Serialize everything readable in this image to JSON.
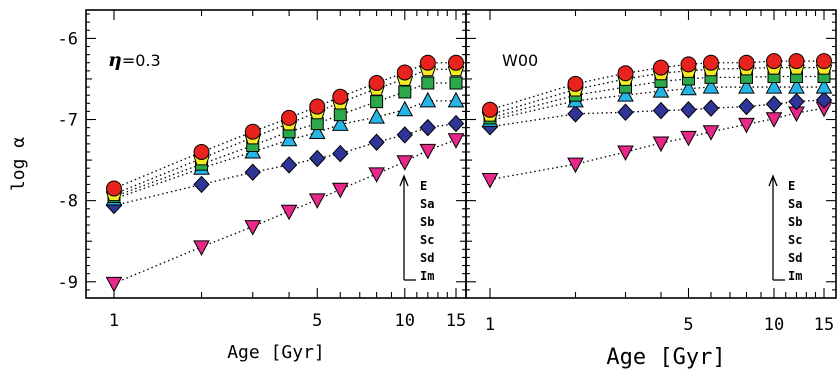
{
  "chart_data": {
    "type": "scatter",
    "y_axis_title": "log α",
    "x_axis_title": "Age [Gyr]",
    "x_scale": "log",
    "ylim": [
      -9.2,
      -5.65
    ],
    "y_ticks": [
      "-6",
      "-7",
      "-8",
      "-9"
    ],
    "x_tick_labels": [
      "1",
      "5",
      "10",
      "15"
    ],
    "x": [
      1,
      2,
      3,
      4,
      5,
      6,
      8,
      10,
      12,
      15
    ],
    "series_styles": [
      {
        "name": "E",
        "marker": "circle",
        "color": "#e8221c"
      },
      {
        "name": "Sa",
        "marker": "pentagon",
        "color": "#f4ec22"
      },
      {
        "name": "Sb",
        "marker": "square",
        "color": "#2ba84a"
      },
      {
        "name": "Sc",
        "marker": "triangle-up",
        "color": "#27b5e6"
      },
      {
        "name": "Sd",
        "marker": "diamond",
        "color": "#2f3596"
      },
      {
        "name": "Im",
        "marker": "triangle-down",
        "color": "#e5288a"
      }
    ],
    "panels": [
      {
        "label_symbol": "η",
        "label_value": "=0.3",
        "legend_names": [
          "E",
          "Sa",
          "Sb",
          "Sc",
          "Sd",
          "Im"
        ],
        "series": [
          {
            "name": "E",
            "values": [
              -7.85,
              -7.4,
              -7.15,
              -6.98,
              -6.84,
              -6.72,
              -6.55,
              -6.42,
              -6.3,
              -6.3
            ]
          },
          {
            "name": "Sa",
            "values": [
              -7.92,
              -7.48,
              -7.22,
              -7.05,
              -6.91,
              -6.79,
              -6.62,
              -6.5,
              -6.38,
              -6.38
            ]
          },
          {
            "name": "Sb",
            "values": [
              -7.95,
              -7.55,
              -7.32,
              -7.15,
              -7.05,
              -6.94,
              -6.78,
              -6.66,
              -6.55,
              -6.55
            ]
          },
          {
            "name": "Sc",
            "values": [
              -7.98,
              -7.6,
              -7.4,
              -7.25,
              -7.16,
              -7.06,
              -6.97,
              -6.88,
              -6.77,
              -6.77
            ]
          },
          {
            "name": "Sd",
            "values": [
              -8.06,
              -7.8,
              -7.65,
              -7.56,
              -7.48,
              -7.42,
              -7.28,
              -7.19,
              -7.1,
              -7.05
            ]
          },
          {
            "name": "Im",
            "values": [
              -9.02,
              -8.57,
              -8.32,
              -8.13,
              -7.99,
              -7.86,
              -7.67,
              -7.52,
              -7.38,
              -7.25
            ]
          }
        ]
      },
      {
        "label": "W00",
        "legend_names": [
          "E",
          "Sa",
          "Sb",
          "Sc",
          "Sd",
          "Im"
        ],
        "series": [
          {
            "name": "E",
            "values": [
              -6.88,
              -6.56,
              -6.43,
              -6.36,
              -6.32,
              -6.3,
              -6.3,
              -6.28,
              -6.28,
              -6.28
            ]
          },
          {
            "name": "Sa",
            "values": [
              -6.94,
              -6.63,
              -6.5,
              -6.43,
              -6.4,
              -6.38,
              -6.37,
              -6.36,
              -6.36,
              -6.36
            ]
          },
          {
            "name": "Sb",
            "values": [
              -6.98,
              -6.7,
              -6.6,
              -6.53,
              -6.5,
              -6.48,
              -6.48,
              -6.47,
              -6.47,
              -6.47
            ]
          },
          {
            "name": "Sc",
            "values": [
              -7.01,
              -6.77,
              -6.7,
              -6.65,
              -6.62,
              -6.6,
              -6.6,
              -6.6,
              -6.6,
              -6.6
            ]
          },
          {
            "name": "Sd",
            "values": [
              -7.09,
              -6.93,
              -6.91,
              -6.89,
              -6.88,
              -6.86,
              -6.84,
              -6.81,
              -6.78,
              -6.76
            ]
          },
          {
            "name": "Im",
            "values": [
              -7.74,
              -7.55,
              -7.4,
              -7.29,
              -7.22,
              -7.15,
              -7.06,
              -6.99,
              -6.92,
              -6.86
            ]
          }
        ]
      }
    ]
  }
}
